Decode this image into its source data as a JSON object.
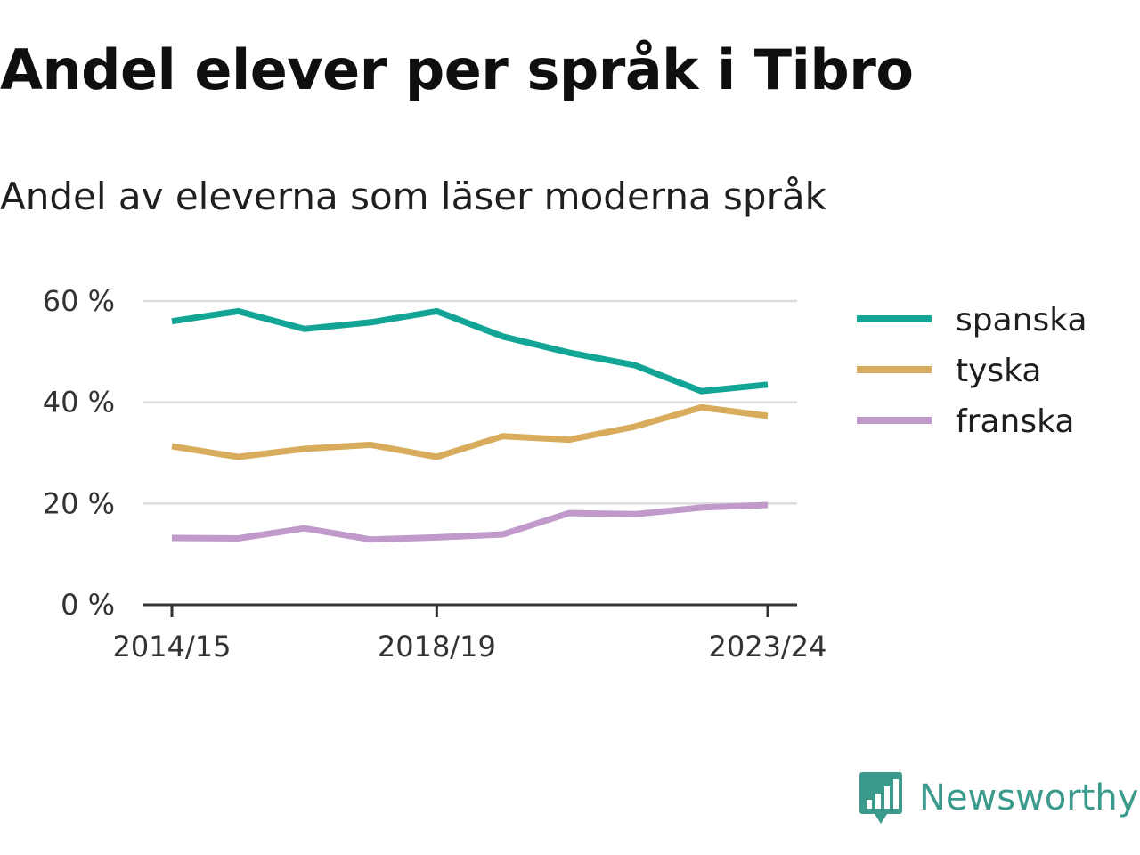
{
  "header": {
    "title": "Andel elever per språk i Tibro",
    "subtitle": "Andel av eleverna som läser moderna språk"
  },
  "brand": {
    "name": "Newsworthy",
    "icon": "bar-chart-speech-bubble-icon",
    "color": "#3a9a8c"
  },
  "chart_data": {
    "type": "line",
    "x": [
      "2014/15",
      "2015/16",
      "2016/17",
      "2017/18",
      "2018/19",
      "2019/20",
      "2020/21",
      "2021/22",
      "2022/23",
      "2023/24"
    ],
    "x_tick_labels": [
      "2014/15",
      "2018/19",
      "2023/24"
    ],
    "y_tick_labels": [
      "0 %",
      "20 %",
      "40 %",
      "60 %"
    ],
    "y_ticks": [
      0,
      20,
      40,
      60
    ],
    "ylim": [
      0,
      60
    ],
    "grid": true,
    "legend_position": "right",
    "series": [
      {
        "name": "spanska",
        "color": "#12a596",
        "values": [
          56.0,
          58.0,
          54.5,
          55.8,
          58.0,
          53.0,
          49.8,
          47.3,
          42.2,
          43.5
        ]
      },
      {
        "name": "tyska",
        "color": "#d8ac5c",
        "values": [
          31.3,
          29.2,
          30.8,
          31.6,
          29.2,
          33.3,
          32.6,
          35.2,
          39.0,
          37.3
        ]
      },
      {
        "name": "franska",
        "color": "#c09acb",
        "values": [
          13.2,
          13.1,
          15.1,
          12.9,
          13.3,
          13.9,
          18.1,
          17.9,
          19.2,
          19.7
        ]
      }
    ]
  }
}
